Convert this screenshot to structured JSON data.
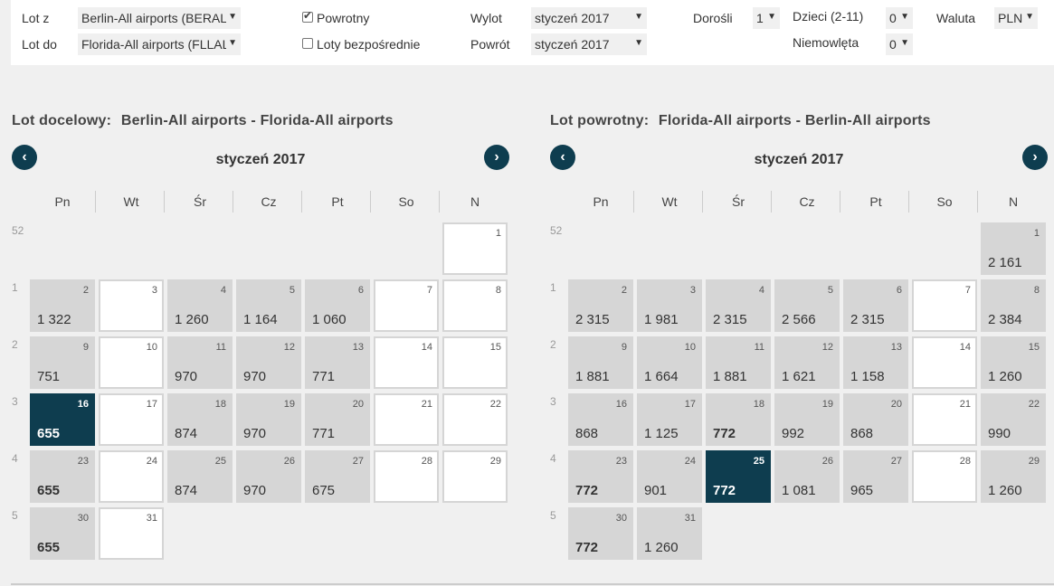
{
  "search": {
    "from_label": "Lot z",
    "from_value": "Berlin-All airports (BERALL)",
    "to_label": "Lot do",
    "to_value": "Florida-All airports (FLLALL)",
    "return_label": "Powrotny",
    "direct_label": "Loty bezpośrednie",
    "depart_label": "Wylot",
    "depart_value": "styczeń 2017",
    "return_date_label": "Powrót",
    "return_date_value": "styczeń 2017",
    "adults_label": "Dorośli",
    "adults_value": "1",
    "children_label": "Dzieci (2-11)",
    "children_value": "0",
    "infants_label": "Niemowlęta",
    "infants_value": "0",
    "currency_label": "Waluta",
    "currency_value": "PLN",
    "return_checked": true,
    "direct_checked": false
  },
  "weekdays": [
    "Pn",
    "Wt",
    "Śr",
    "Cz",
    "Pt",
    "So",
    "N"
  ],
  "calendars": [
    {
      "title_prefix": "Lot docelowy:",
      "title_route": "Berlin-All airports - Florida-All airports",
      "month": "styczeń 2017",
      "prev_icon": "‹",
      "next_icon": "›",
      "weeks": [
        {
          "num": "52",
          "days": [
            null,
            null,
            null,
            null,
            null,
            null,
            {
              "d": "1",
              "p": ""
            }
          ]
        },
        {
          "num": "1",
          "days": [
            {
              "d": "2",
              "p": "1 322"
            },
            {
              "d": "3",
              "p": ""
            },
            {
              "d": "4",
              "p": "1 260"
            },
            {
              "d": "5",
              "p": "1 164"
            },
            {
              "d": "6",
              "p": "1 060"
            },
            {
              "d": "7",
              "p": ""
            },
            {
              "d": "8",
              "p": ""
            }
          ]
        },
        {
          "num": "2",
          "days": [
            {
              "d": "9",
              "p": "751"
            },
            {
              "d": "10",
              "p": ""
            },
            {
              "d": "11",
              "p": "970"
            },
            {
              "d": "12",
              "p": "970"
            },
            {
              "d": "13",
              "p": "771"
            },
            {
              "d": "14",
              "p": ""
            },
            {
              "d": "15",
              "p": ""
            }
          ]
        },
        {
          "num": "3",
          "days": [
            {
              "d": "16",
              "p": "655",
              "sel": true,
              "low": true
            },
            {
              "d": "17",
              "p": ""
            },
            {
              "d": "18",
              "p": "874"
            },
            {
              "d": "19",
              "p": "970"
            },
            {
              "d": "20",
              "p": "771"
            },
            {
              "d": "21",
              "p": ""
            },
            {
              "d": "22",
              "p": ""
            }
          ]
        },
        {
          "num": "4",
          "days": [
            {
              "d": "23",
              "p": "655",
              "low": true
            },
            {
              "d": "24",
              "p": ""
            },
            {
              "d": "25",
              "p": "874"
            },
            {
              "d": "26",
              "p": "970"
            },
            {
              "d": "27",
              "p": "675"
            },
            {
              "d": "28",
              "p": ""
            },
            {
              "d": "29",
              "p": ""
            }
          ]
        },
        {
          "num": "5",
          "days": [
            {
              "d": "30",
              "p": "655",
              "low": true
            },
            {
              "d": "31",
              "p": ""
            },
            null,
            null,
            null,
            null,
            null
          ]
        }
      ]
    },
    {
      "title_prefix": "Lot powrotny:",
      "title_route": "Florida-All airports - Berlin-All airports",
      "month": "styczeń 2017",
      "prev_icon": "‹",
      "next_icon": "›",
      "weeks": [
        {
          "num": "52",
          "days": [
            null,
            null,
            null,
            null,
            null,
            null,
            {
              "d": "1",
              "p": "2 161"
            }
          ]
        },
        {
          "num": "1",
          "days": [
            {
              "d": "2",
              "p": "2 315"
            },
            {
              "d": "3",
              "p": "1 981"
            },
            {
              "d": "4",
              "p": "2 315"
            },
            {
              "d": "5",
              "p": "2 566"
            },
            {
              "d": "6",
              "p": "2 315"
            },
            {
              "d": "7",
              "p": ""
            },
            {
              "d": "8",
              "p": "2 384"
            }
          ]
        },
        {
          "num": "2",
          "days": [
            {
              "d": "9",
              "p": "1 881"
            },
            {
              "d": "10",
              "p": "1 664"
            },
            {
              "d": "11",
              "p": "1 881"
            },
            {
              "d": "12",
              "p": "1 621"
            },
            {
              "d": "13",
              "p": "1 158"
            },
            {
              "d": "14",
              "p": ""
            },
            {
              "d": "15",
              "p": "1 260"
            }
          ]
        },
        {
          "num": "3",
          "days": [
            {
              "d": "16",
              "p": "868"
            },
            {
              "d": "17",
              "p": "1 125"
            },
            {
              "d": "18",
              "p": "772",
              "low": true
            },
            {
              "d": "19",
              "p": "992"
            },
            {
              "d": "20",
              "p": "868"
            },
            {
              "d": "21",
              "p": ""
            },
            {
              "d": "22",
              "p": "990"
            }
          ]
        },
        {
          "num": "4",
          "days": [
            {
              "d": "23",
              "p": "772",
              "low": true
            },
            {
              "d": "24",
              "p": "901"
            },
            {
              "d": "25",
              "p": "772",
              "sel": true,
              "low": true
            },
            {
              "d": "26",
              "p": "1 081"
            },
            {
              "d": "27",
              "p": "965"
            },
            {
              "d": "28",
              "p": ""
            },
            {
              "d": "29",
              "p": "1 260"
            }
          ]
        },
        {
          "num": "5",
          "days": [
            {
              "d": "30",
              "p": "772",
              "low": true
            },
            {
              "d": "31",
              "p": "1 260"
            },
            null,
            null,
            null,
            null,
            null
          ]
        }
      ]
    }
  ]
}
